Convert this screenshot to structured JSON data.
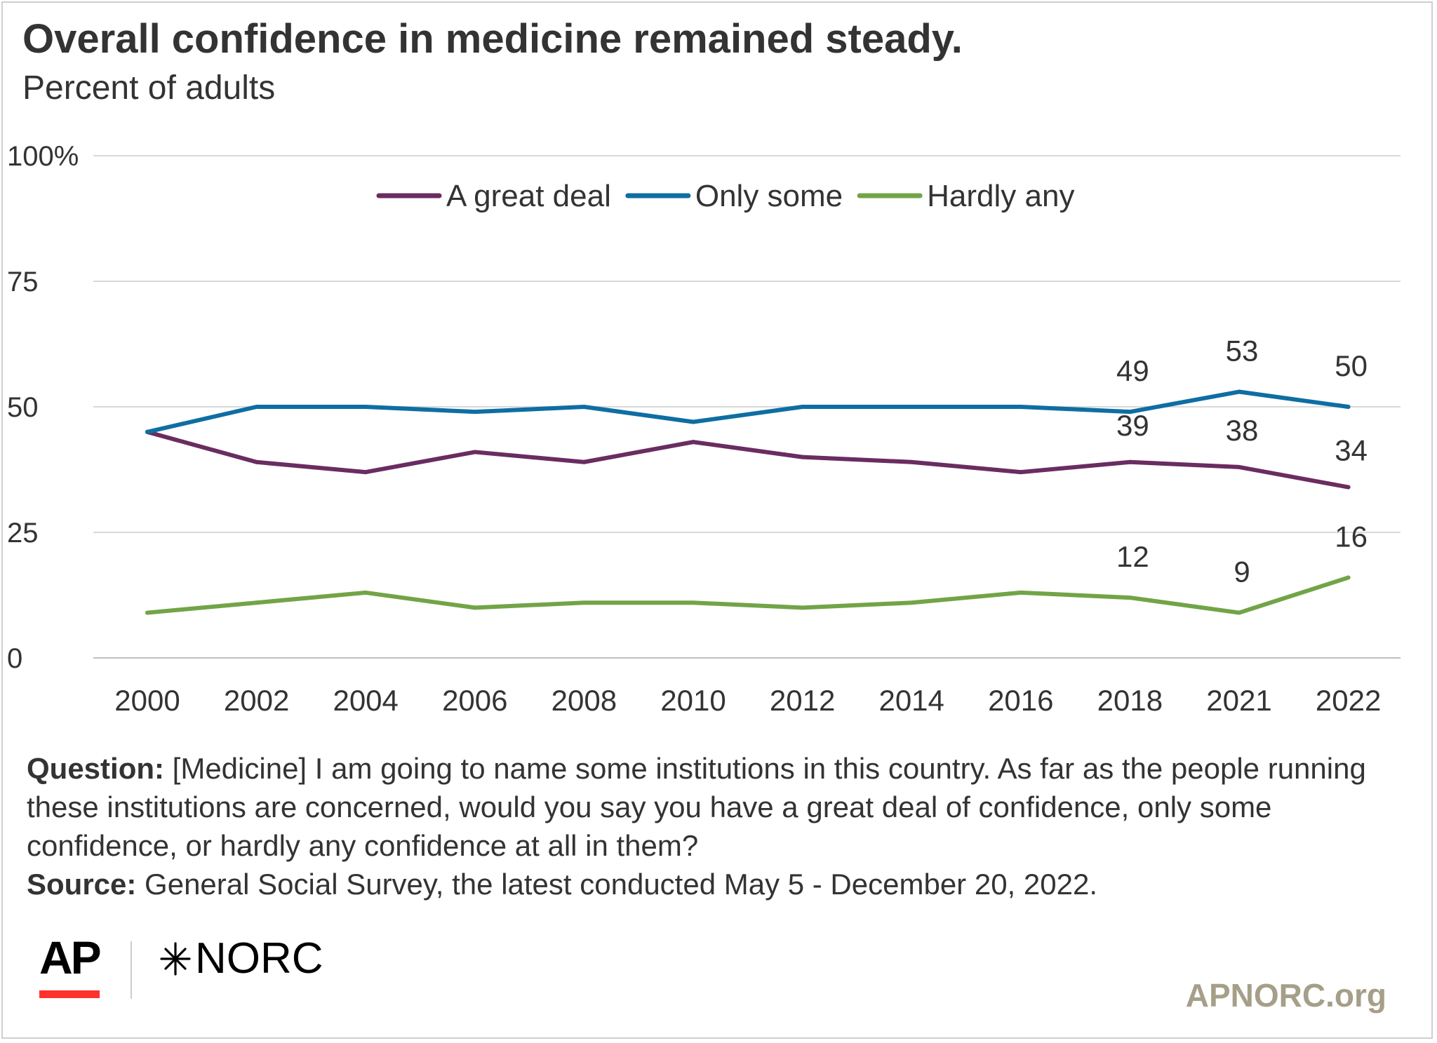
{
  "header": {
    "title": "Overall confidence in medicine remained steady.",
    "subtitle": "Percent of adults"
  },
  "notes": {
    "question_label": "Question:",
    "question_text": "[Medicine] I am going to name some institutions in this country. As far as the people running these institutions are concerned, would you say you have a great deal of confidence, only some confidence, or hardly any confidence at all in them?",
    "source_label": "Source:",
    "source_text": "General Social Survey, the latest conducted May 5 - December 20, 2022."
  },
  "footer": {
    "logo_ap": "AP",
    "logo_norc": "NORC",
    "site": "APNORC.org"
  },
  "colors": {
    "great_deal": "#6a2c61",
    "only_some": "#0e6ea3",
    "hardly_any": "#72a447",
    "grid": "#d9d9d9",
    "text": "#333333",
    "site": "#a69f88",
    "ap_red": "#ff322e"
  },
  "chart_data": {
    "type": "line",
    "title": "Overall confidence in medicine remained steady.",
    "subtitle": "Percent of adults",
    "categories": [
      "2000",
      "2002",
      "2004",
      "2006",
      "2008",
      "2010",
      "2012",
      "2014",
      "2016",
      "2018",
      "2021",
      "2022"
    ],
    "ylim": [
      0,
      100
    ],
    "yticks": [
      0,
      25,
      50,
      75,
      100
    ],
    "ytick_labels": [
      "0",
      "25",
      "50",
      "75",
      "100%"
    ],
    "grid": true,
    "legend_position": "top-center",
    "series": [
      {
        "name": "A great deal",
        "color": "#6a2c61",
        "values": [
          45,
          39,
          37,
          41,
          39,
          43,
          40,
          39,
          37,
          39,
          38,
          34
        ],
        "labels": [
          null,
          null,
          null,
          null,
          null,
          null,
          null,
          null,
          null,
          "39",
          "38",
          "34"
        ]
      },
      {
        "name": "Only some",
        "color": "#0e6ea3",
        "values": [
          45,
          50,
          50,
          49,
          50,
          47,
          50,
          50,
          50,
          49,
          53,
          50
        ],
        "labels": [
          null,
          null,
          null,
          null,
          null,
          null,
          null,
          null,
          null,
          "49",
          "53",
          "50"
        ]
      },
      {
        "name": "Hardly any",
        "color": "#72a447",
        "values": [
          9,
          11,
          13,
          10,
          11,
          11,
          10,
          11,
          13,
          12,
          9,
          16
        ],
        "labels": [
          null,
          null,
          null,
          null,
          null,
          null,
          null,
          null,
          null,
          "12",
          "9",
          "16"
        ]
      }
    ]
  }
}
